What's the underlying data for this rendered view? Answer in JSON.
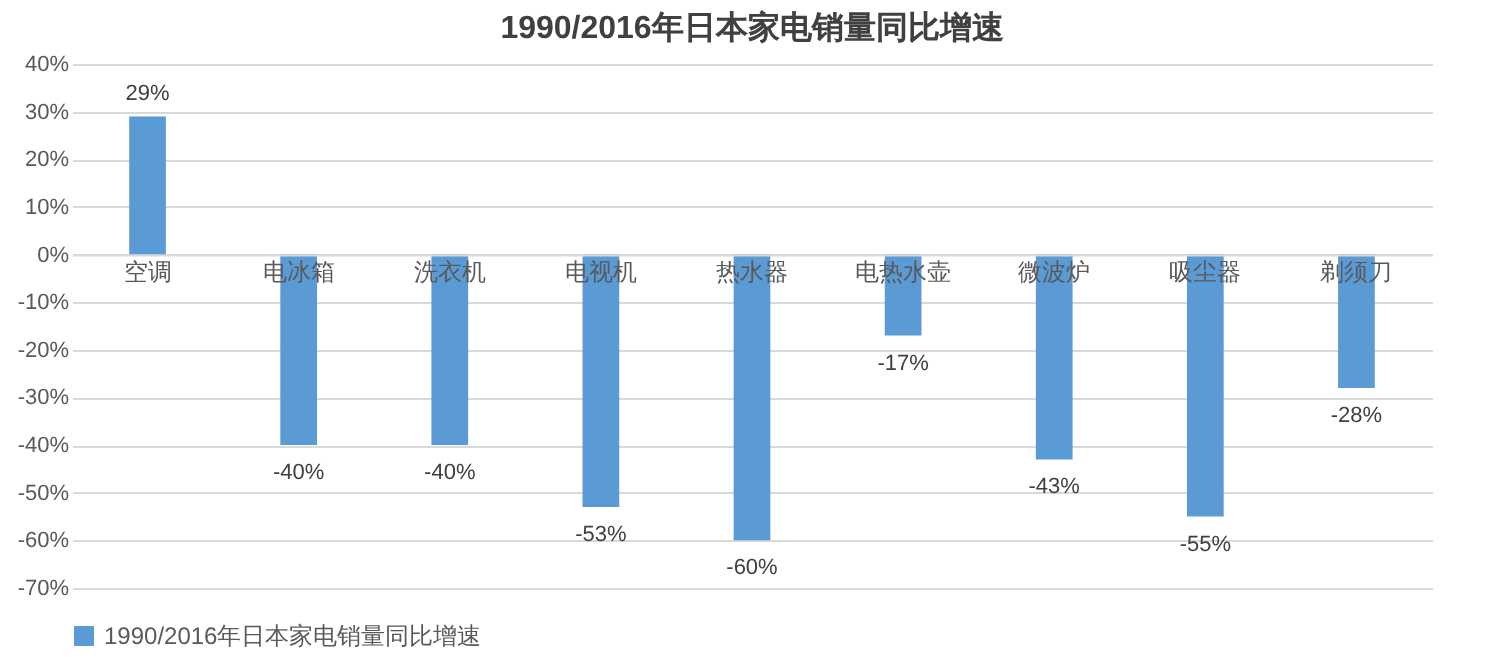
{
  "chart_data": {
    "type": "bar",
    "title": "1990/2016年日本家电销量同比增速",
    "categories": [
      "空调",
      "电冰箱",
      "洗衣机",
      "电视机",
      "热水器",
      "电热水壶",
      "微波炉",
      "吸尘器",
      "剃须刀"
    ],
    "series": [
      {
        "name": "1990/2016年日本家电销量同比增速",
        "color": "#5b9bd5",
        "values": [
          29,
          -40,
          -40,
          -53,
          -60,
          -17,
          -43,
          -55,
          -28
        ],
        "value_labels": [
          "29%",
          "-40%",
          "-40%",
          "-53%",
          "-60%",
          "-17%",
          "-43%",
          "-55%",
          "-28%"
        ]
      }
    ],
    "ylim": [
      -70,
      40
    ],
    "yticks": [
      {
        "value": 40,
        "label": "40%"
      },
      {
        "value": 30,
        "label": "30%"
      },
      {
        "value": 20,
        "label": "20%"
      },
      {
        "value": 10,
        "label": "10%"
      },
      {
        "value": 0,
        "label": "0%"
      },
      {
        "value": -10,
        "label": "-10%"
      },
      {
        "value": -20,
        "label": "-20%"
      },
      {
        "value": -30,
        "label": "-30%"
      },
      {
        "value": -40,
        "label": "-40%"
      },
      {
        "value": -50,
        "label": "-50%"
      },
      {
        "value": -60,
        "label": "-60%"
      },
      {
        "value": -70,
        "label": "-70%"
      }
    ],
    "grid": "y",
    "legend": "bottom"
  }
}
